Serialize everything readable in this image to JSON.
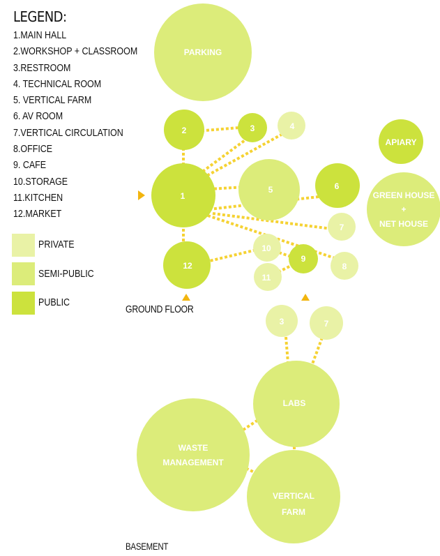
{
  "legend": {
    "title": "LEGEND:",
    "items": [
      "1.MAIN HALL",
      "2.WORKSHOP + CLASSROOM",
      "3.RESTROOM",
      "4. TECHNICAL ROOM",
      "5. VERTICAL FARM",
      "6. AV ROOM",
      "7.VERTICAL CIRCULATION",
      "8.OFFICE",
      "9. CAFE",
      "10.STORAGE",
      "11.KITCHEN",
      "12.MARKET"
    ]
  },
  "zones": {
    "private": {
      "label": "PRIVATE",
      "color": "#e9f2a6"
    },
    "semi_public": {
      "label": "SEMI-PUBLIC",
      "color": "#dcec7a"
    },
    "public": {
      "label": "PUBLIC",
      "color": "#cce23d"
    }
  },
  "connector_color": "#f5d233",
  "arrow_color": "#f2b50f",
  "ground_floor": {
    "label": "GROUND FLOOR",
    "nodes": {
      "parking": "PARKING",
      "apiary": "APIARY",
      "greenhouse_line1": "GREEN HOUSE",
      "greenhouse_plus": "+",
      "greenhouse_line2": "NET HOUSE",
      "n1": "1",
      "n2": "2",
      "n3": "3",
      "n4": "4",
      "n5": "5",
      "n6": "6",
      "n7": "7",
      "n8": "8",
      "n9": "9",
      "n10": "10",
      "n11": "11",
      "n12": "12"
    }
  },
  "basement": {
    "label": "BASEMENT",
    "nodes": {
      "b3": "3",
      "b7": "7",
      "labs": "LABS",
      "waste_line1": "WASTE",
      "waste_line2": "MANAGEMENT",
      "vfarm_line1": "VERTICAL",
      "vfarm_line2": "FARM"
    }
  }
}
